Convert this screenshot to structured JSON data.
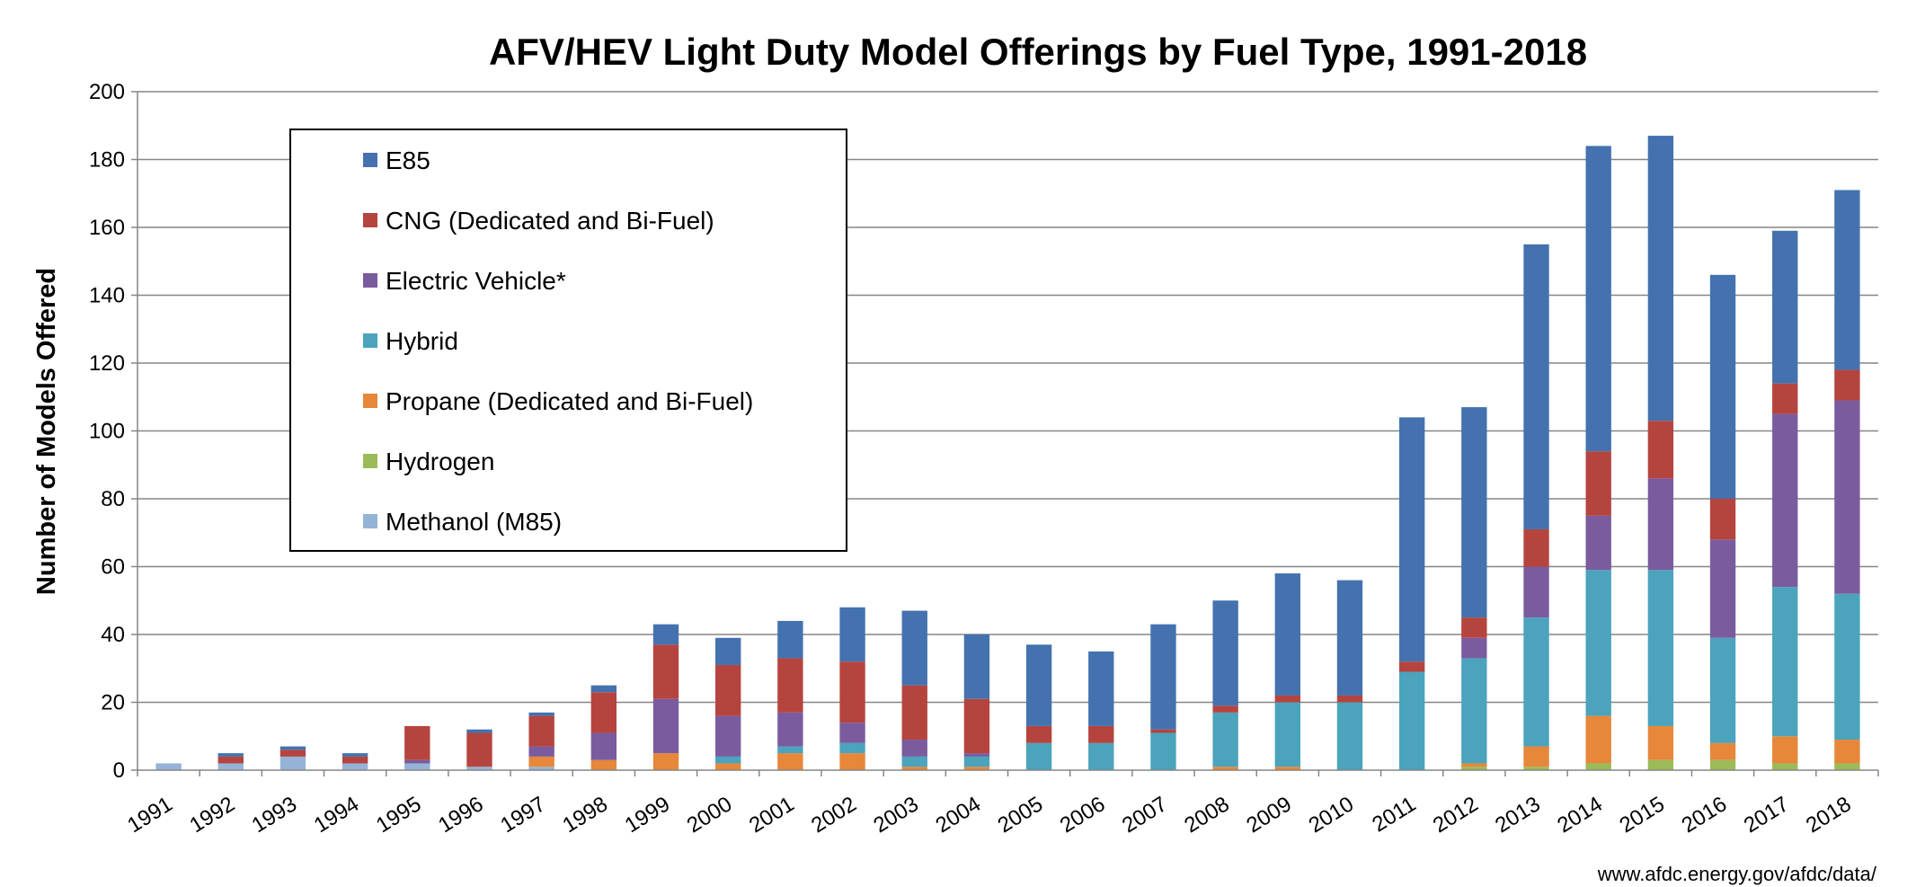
{
  "chart_data": {
    "type": "bar",
    "stacked": true,
    "title": "AFV/HEV Light Duty Model Offerings by Fuel Type, 1991-2018",
    "xlabel": "",
    "ylabel": "Number of Models Offered",
    "ylim": [
      0,
      200
    ],
    "yticks": [
      0,
      20,
      40,
      60,
      80,
      100,
      120,
      140,
      160,
      180,
      200
    ],
    "grid": true,
    "legend_position": "top-left",
    "source_note": "www.afdc.energy.gov/afdc/data/",
    "categories": [
      "1991",
      "1992",
      "1993",
      "1994",
      "1995",
      "1996",
      "1997",
      "1998",
      "1999",
      "2000",
      "2001",
      "2002",
      "2003",
      "2004",
      "2005",
      "2006",
      "2007",
      "2008",
      "2009",
      "2010",
      "2011",
      "2012",
      "2013",
      "2014",
      "2015",
      "2016",
      "2017",
      "2018"
    ],
    "series": [
      {
        "name": "Methanol (M85)",
        "color": "#95B3D7",
        "values": [
          2,
          2,
          4,
          2,
          2,
          1,
          1,
          0,
          0,
          0,
          0,
          0,
          0,
          0,
          0,
          0,
          0,
          0,
          0,
          0,
          0,
          0,
          0,
          0,
          0,
          0,
          0,
          0
        ]
      },
      {
        "name": "Hydrogen",
        "color": "#9BBB59",
        "values": [
          0,
          0,
          0,
          0,
          0,
          0,
          0,
          0,
          0,
          0,
          0,
          0,
          0,
          0,
          0,
          0,
          0,
          0,
          0,
          0,
          0,
          1,
          1,
          2,
          3,
          3,
          2,
          2
        ]
      },
      {
        "name": "Propane (Dedicated and Bi-Fuel)",
        "color": "#E6873A",
        "values": [
          0,
          0,
          0,
          0,
          0,
          0,
          3,
          3,
          5,
          2,
          5,
          5,
          1,
          1,
          0,
          0,
          0,
          1,
          1,
          0,
          0,
          1,
          6,
          14,
          10,
          5,
          8,
          7
        ]
      },
      {
        "name": "Hybrid",
        "color": "#4BA3BC",
        "values": [
          0,
          0,
          0,
          0,
          0,
          0,
          0,
          0,
          0,
          2,
          2,
          3,
          3,
          3,
          8,
          8,
          11,
          16,
          19,
          20,
          29,
          31,
          38,
          43,
          46,
          31,
          44,
          43
        ]
      },
      {
        "name": "Electric Vehicle*",
        "color": "#7A5C9E",
        "values": [
          0,
          0,
          0,
          0,
          1,
          0,
          3,
          8,
          16,
          12,
          10,
          6,
          5,
          1,
          0,
          0,
          0,
          0,
          0,
          0,
          0,
          6,
          15,
          16,
          27,
          29,
          51,
          57
        ]
      },
      {
        "name": "CNG (Dedicated and Bi-Fuel)",
        "color": "#B5443F",
        "values": [
          0,
          2,
          2,
          2,
          10,
          10,
          9,
          12,
          16,
          15,
          16,
          18,
          16,
          16,
          5,
          5,
          1,
          2,
          2,
          2,
          3,
          6,
          11,
          19,
          17,
          12,
          9,
          9
        ]
      },
      {
        "name": "E85",
        "color": "#4472AF",
        "values": [
          0,
          1,
          1,
          1,
          0,
          1,
          1,
          2,
          6,
          8,
          11,
          16,
          22,
          19,
          24,
          22,
          31,
          31,
          36,
          34,
          72,
          62,
          84,
          90,
          84,
          66,
          45,
          53
        ]
      }
    ],
    "legend_order": [
      "E85",
      "CNG (Dedicated and Bi-Fuel)",
      "Electric Vehicle*",
      "Hybrid",
      "Propane (Dedicated and Bi-Fuel)",
      "Hydrogen",
      "Methanol (M85)"
    ]
  }
}
